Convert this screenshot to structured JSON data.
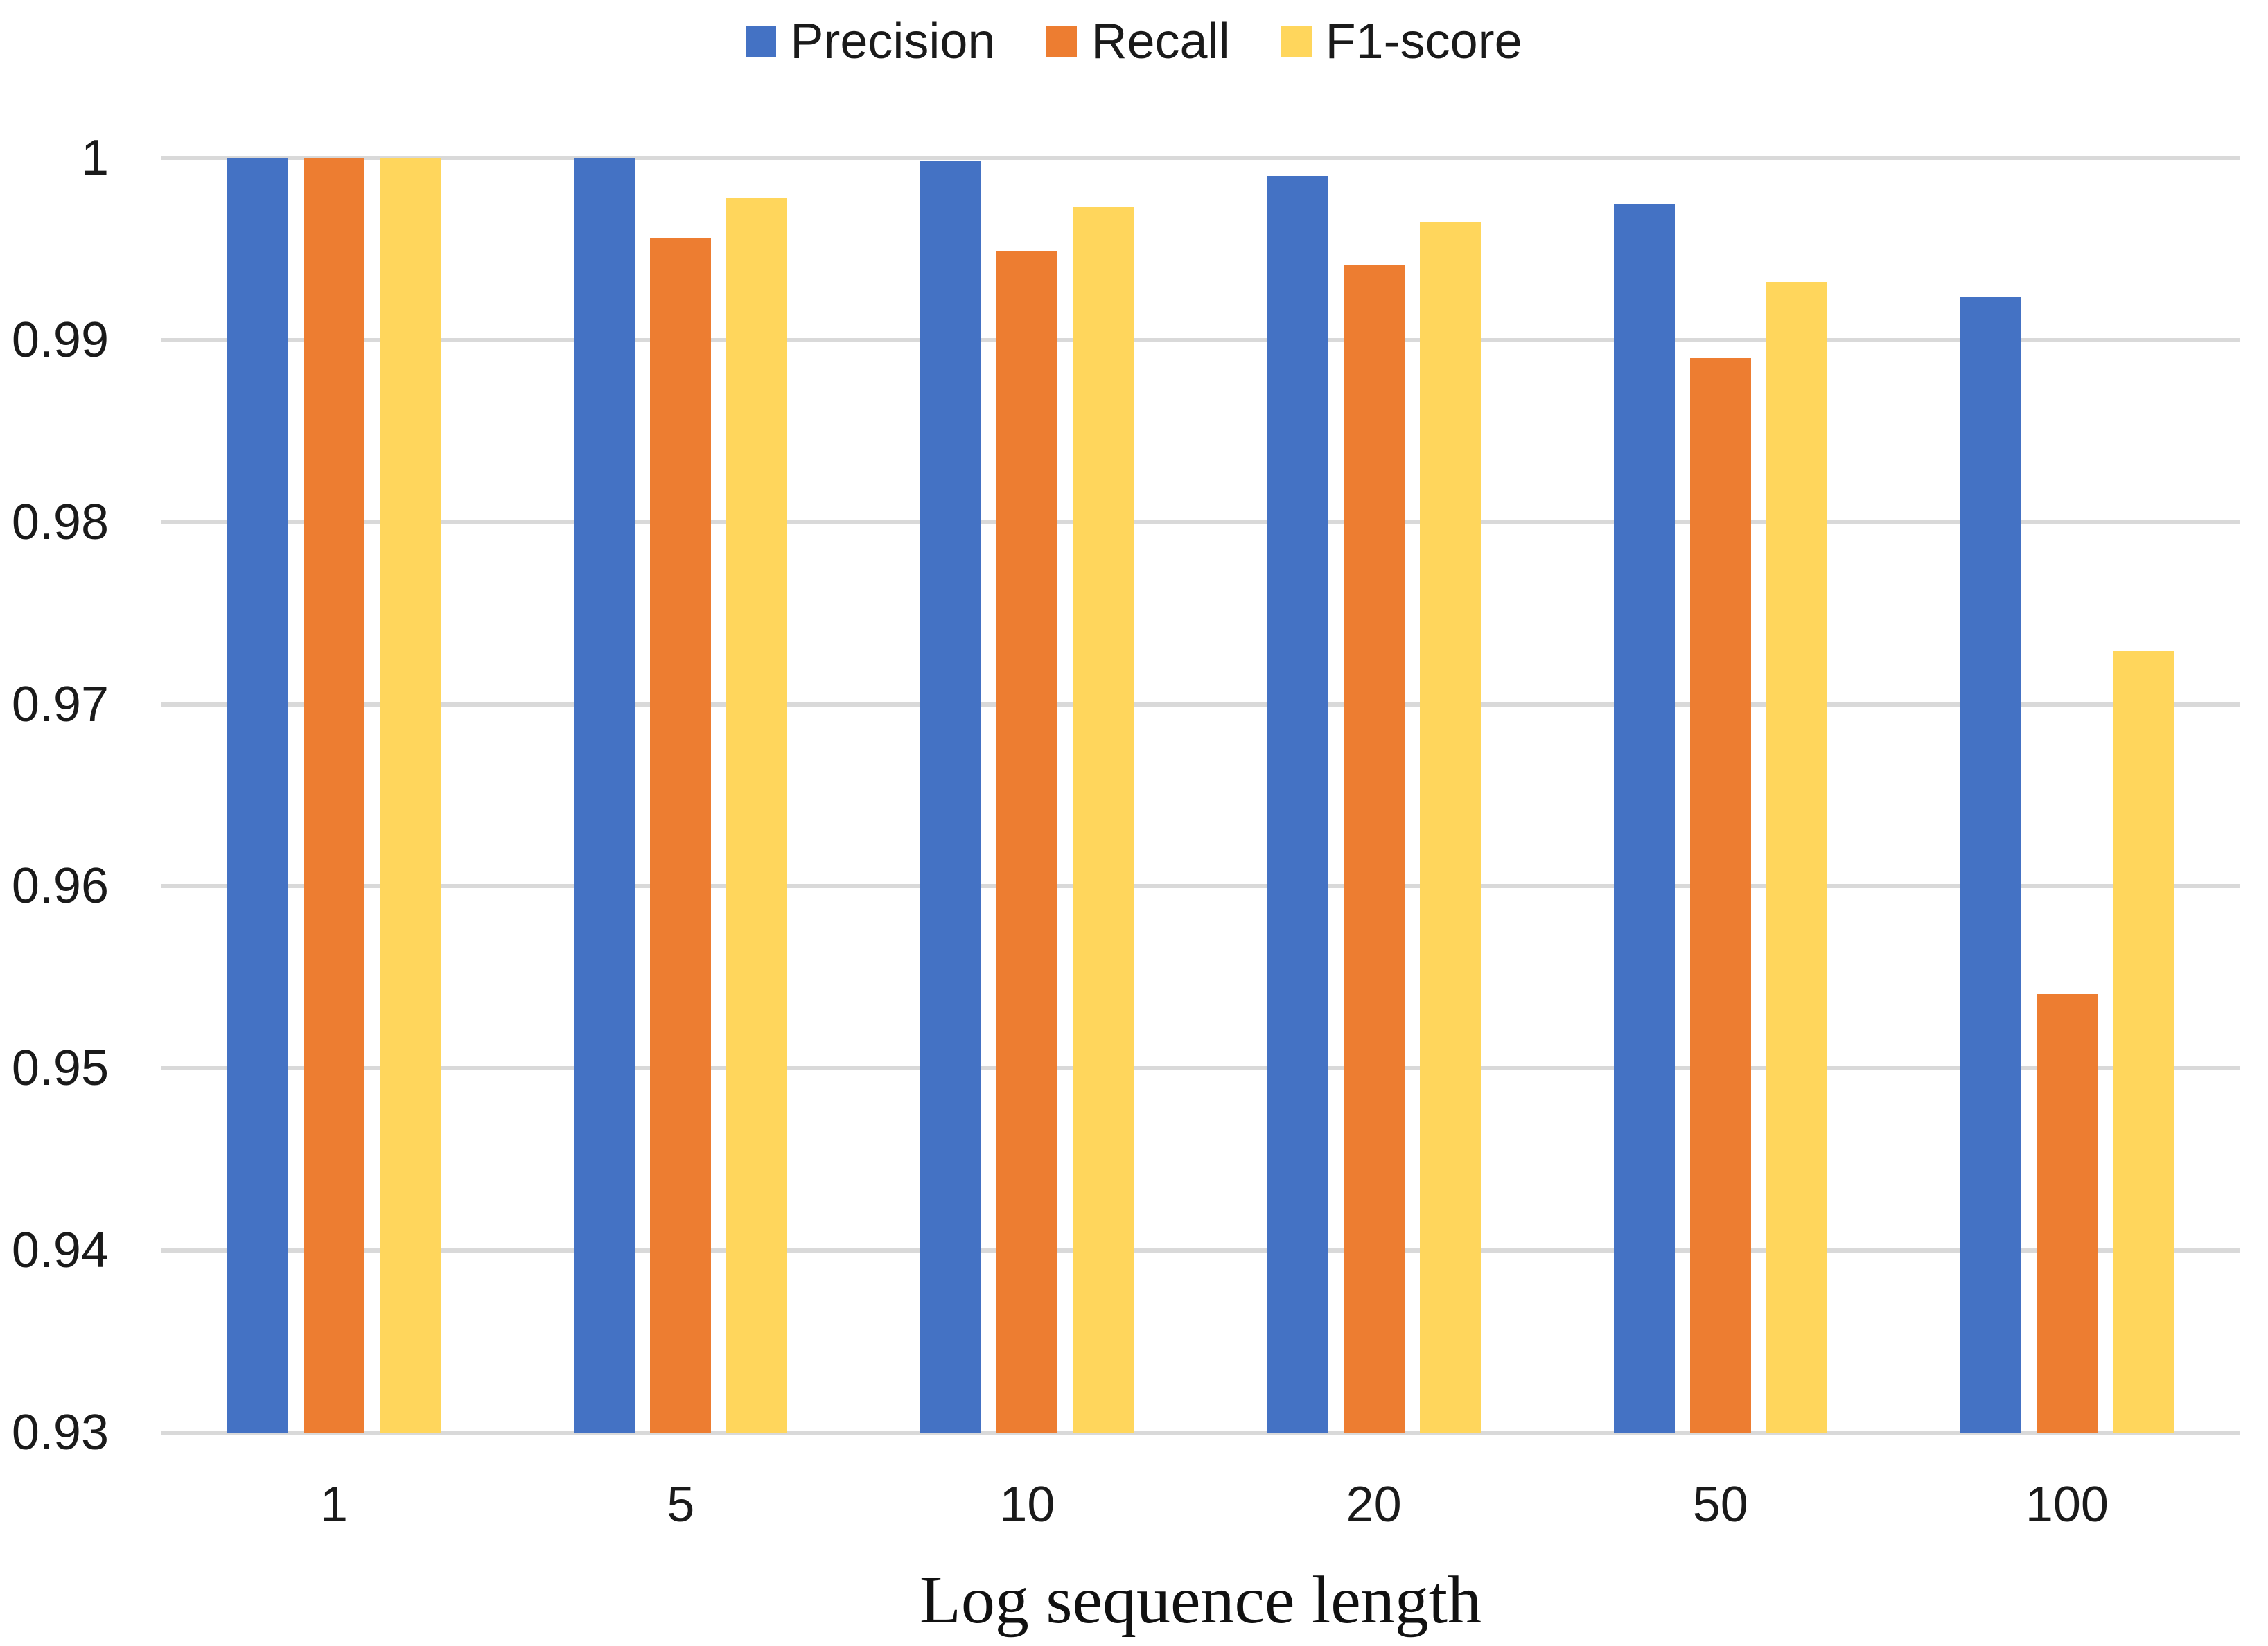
{
  "chart_data": {
    "type": "bar",
    "title": "",
    "xlabel": "Log sequence length",
    "ylabel": "",
    "categories": [
      "1",
      "5",
      "10",
      "20",
      "50",
      "100"
    ],
    "series": [
      {
        "name": "Precision",
        "color": "#4472C4",
        "values": [
          1.0,
          1.0,
          0.9998,
          0.999,
          0.9975,
          0.9924
        ]
      },
      {
        "name": "Recall",
        "color": "#ED7D31",
        "values": [
          1.0,
          0.9956,
          0.9949,
          0.9941,
          0.989,
          0.9541
        ]
      },
      {
        "name": "F1-score",
        "color": "#FFD65C",
        "values": [
          1.0,
          0.9978,
          0.9973,
          0.9965,
          0.9932,
          0.9729
        ]
      }
    ],
    "y_axis": {
      "min": 0.93,
      "max": 1.0,
      "tick_step": 0.01,
      "tick_labels": [
        "1",
        "0.99",
        "0.98",
        "0.97",
        "0.96",
        "0.95",
        "0.94",
        "0.93"
      ]
    },
    "legend": {
      "position": "top"
    },
    "grid": {
      "show": true,
      "color": "#D9D9D9"
    }
  }
}
